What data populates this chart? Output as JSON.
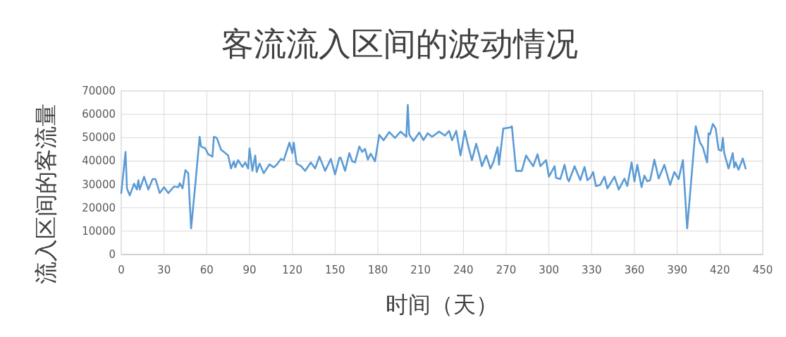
{
  "chart_data": {
    "type": "line",
    "title": "客流流入区间的波动情况",
    "xlabel": "时间（天）",
    "ylabel": "流入区间的客流量",
    "x": [
      0,
      3,
      4,
      6,
      9,
      11,
      12,
      13,
      16,
      19,
      22,
      24,
      27,
      30,
      33,
      37,
      40,
      41,
      43,
      45,
      47,
      49,
      52,
      55,
      56,
      59,
      61,
      64,
      65,
      67,
      70,
      72,
      75,
      77,
      79,
      80,
      82,
      85,
      87,
      89,
      90,
      92,
      94,
      95,
      97,
      100,
      104,
      107,
      109,
      112,
      114,
      118,
      120,
      121,
      123,
      126,
      129,
      133,
      136,
      139,
      143,
      147,
      150,
      153,
      154,
      157,
      160,
      162,
      164,
      167,
      169,
      171,
      173,
      175,
      178,
      181,
      184,
      188,
      192,
      196,
      200,
      201,
      202,
      205,
      209,
      212,
      215,
      218,
      223,
      227,
      230,
      232,
      235,
      238,
      241,
      243,
      246,
      249,
      251,
      253,
      256,
      259,
      261,
      264,
      265,
      268,
      273,
      274,
      277,
      281,
      284,
      286,
      289,
      292,
      294,
      298,
      300,
      304,
      305,
      308,
      311,
      313,
      314,
      318,
      322,
      325,
      327,
      329,
      331,
      333,
      336,
      339,
      341,
      346,
      349,
      353,
      355,
      358,
      360,
      362,
      365,
      367,
      369,
      371,
      374,
      377,
      381,
      385,
      388,
      391,
      394,
      397,
      403,
      406,
      408,
      411,
      412,
      413,
      415,
      417,
      419,
      421,
      422,
      423,
      426,
      429,
      430,
      431,
      433,
      436,
      438
    ],
    "values": [
      26300,
      43900,
      28300,
      25300,
      30300,
      27800,
      31800,
      27800,
      33300,
      27800,
      32300,
      32300,
      26300,
      28800,
      26300,
      29100,
      28800,
      30500,
      28300,
      36100,
      34800,
      11200,
      30300,
      50400,
      46200,
      45400,
      42900,
      41900,
      50400,
      49900,
      44900,
      43900,
      42400,
      36800,
      39900,
      37300,
      40400,
      37500,
      39400,
      36800,
      45400,
      35800,
      42400,
      35300,
      38900,
      34800,
      38600,
      37300,
      38400,
      40900,
      40400,
      47900,
      43400,
      47900,
      38900,
      37900,
      35800,
      39400,
      36800,
      41900,
      35800,
      40900,
      34300,
      41400,
      41400,
      35800,
      43400,
      39900,
      39400,
      46200,
      43900,
      45200,
      40600,
      43200,
      39900,
      51200,
      48900,
      52400,
      49900,
      52600,
      50400,
      64000,
      51400,
      48600,
      52200,
      48900,
      51900,
      50400,
      52600,
      50900,
      52900,
      48900,
      52900,
      42400,
      52900,
      47400,
      40400,
      47400,
      42900,
      37800,
      42400,
      36800,
      39400,
      45900,
      38400,
      53900,
      54400,
      54900,
      35800,
      35800,
      42400,
      40400,
      37800,
      42900,
      37800,
      40400,
      33300,
      37800,
      32800,
      32300,
      38400,
      32500,
      31300,
      37800,
      31800,
      37500,
      31800,
      32800,
      35300,
      29300,
      29800,
      33300,
      28300,
      33300,
      27800,
      32500,
      29300,
      39400,
      31300,
      38400,
      28800,
      33800,
      31300,
      31800,
      40600,
      32500,
      38400,
      29800,
      35300,
      32300,
      40400,
      11200,
      54900,
      47900,
      45900,
      39400,
      51900,
      51400,
      55900,
      53900,
      44900,
      44400,
      49900,
      43400,
      36800,
      43400,
      37300,
      39400,
      36300,
      41100,
      36800
    ],
    "color": "#5b9bd5",
    "line_style": "solid",
    "xlim": [
      0,
      450
    ],
    "xticks": [
      0,
      30,
      60,
      90,
      120,
      150,
      180,
      210,
      240,
      270,
      300,
      330,
      360,
      390,
      420,
      450
    ],
    "ylim": [
      0,
      70000
    ],
    "yticks": [
      0,
      10000,
      20000,
      30000,
      40000,
      50000,
      60000,
      70000
    ],
    "grid": true
  }
}
